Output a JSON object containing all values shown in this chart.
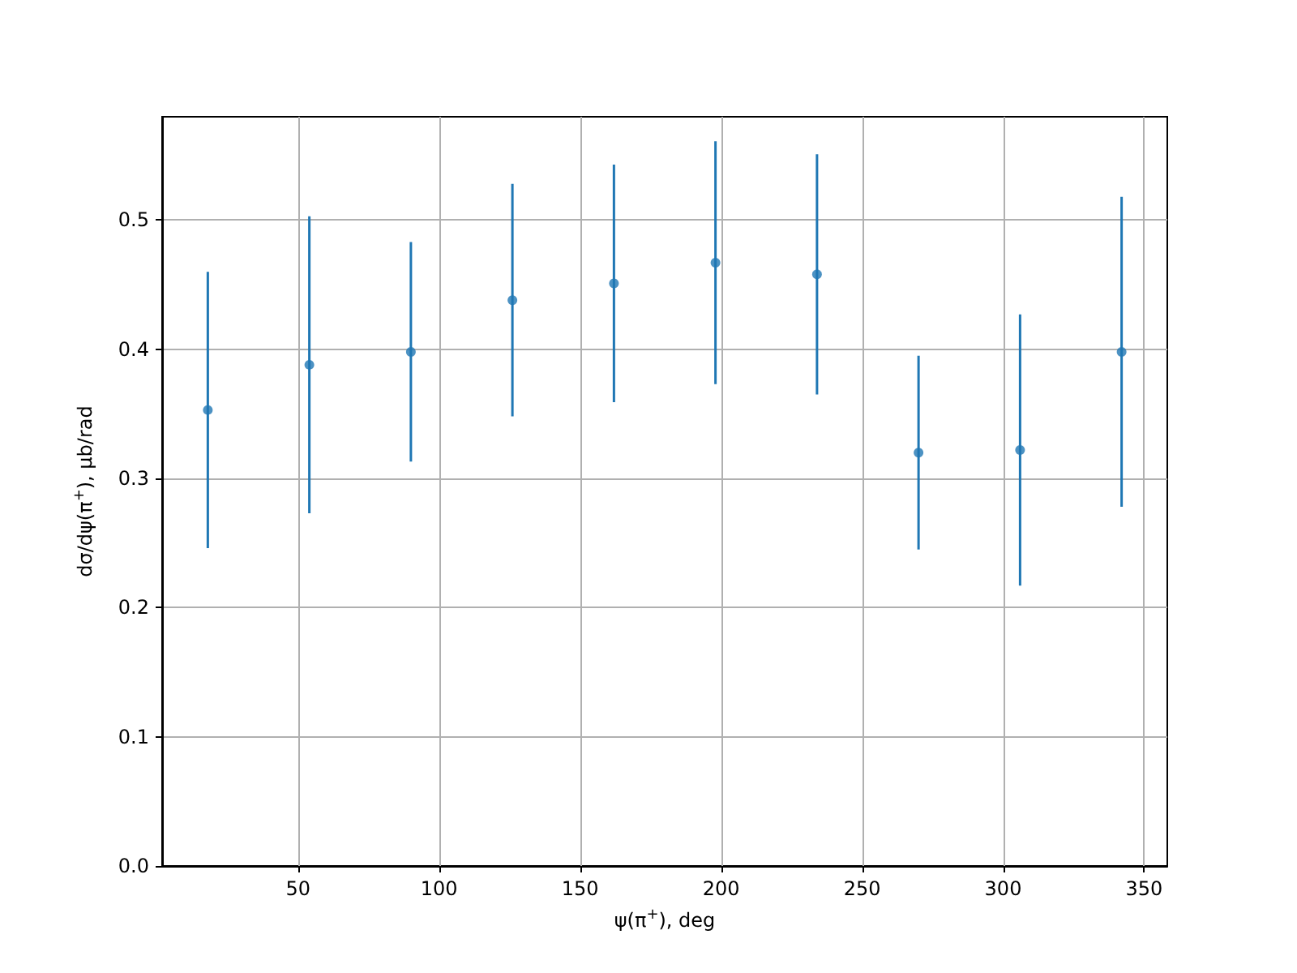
{
  "chart_data": {
    "type": "scatter",
    "xlabel": "ψ(π$^{+}$), deg",
    "ylabel": "dσ/dψ(π$^{+}$), μb/rad",
    "x": [
      18,
      54,
      90,
      126,
      162,
      198,
      234,
      270,
      306,
      342
    ],
    "series": [
      {
        "color": "#1f77b4",
        "values": [
          0.353,
          0.388,
          0.398,
          0.438,
          0.451,
          0.467,
          0.458,
          0.32,
          0.322,
          0.398
        ],
        "errors": [
          0.107,
          0.115,
          0.085,
          0.09,
          0.092,
          0.094,
          0.093,
          0.075,
          0.105,
          0.12
        ]
      }
    ],
    "xlim": [
      1.8,
      358.2
    ],
    "xticks": [
      50,
      100,
      150,
      200,
      250,
      300,
      350
    ],
    "ylim": [
      0,
      0.58
    ],
    "yticks": [
      {
        "value": 0,
        "label": "0.0"
      },
      {
        "value": 0.1,
        "label": "0.1"
      },
      {
        "value": 0.2,
        "label": "0.2"
      },
      {
        "value": 0.3,
        "label": "0.3"
      },
      {
        "value": 0.4,
        "label": "0.4"
      },
      {
        "value": 0.5,
        "label": "0.5"
      }
    ],
    "grid": true,
    "marker": "circle"
  }
}
